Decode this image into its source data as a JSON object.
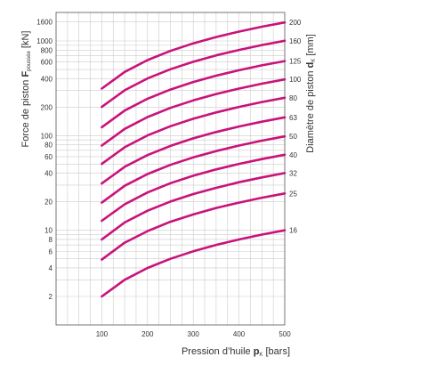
{
  "chart_data": {
    "type": "line",
    "xlabel": {
      "prefix": "Pression d’huile ",
      "symbol": "p",
      "sub": "K",
      "unit": " [bars]"
    },
    "ylabel": {
      "prefix": "Force de piston ",
      "symbol": "F",
      "sub": "poussée",
      "unit": " [kN]"
    },
    "y2label": {
      "prefix": "Diamètre de piston ",
      "symbol": "d",
      "sub": "K",
      "unit": " [mm]"
    },
    "x_scale": "linear",
    "y_scale": "log",
    "xlim": [
      0,
      500
    ],
    "ylim": [
      1,
      2000
    ],
    "x_ticks": [
      100,
      200,
      300,
      400,
      500
    ],
    "y_ticks": [
      2,
      4,
      6,
      8,
      10,
      20,
      40,
      60,
      80,
      100,
      200,
      400,
      600,
      800,
      1000,
      1600
    ],
    "grid": true,
    "line_color": "#c8137a",
    "x": [
      100,
      150,
      200,
      250,
      300,
      350,
      400,
      450,
      500
    ],
    "series": [
      {
        "name": "16",
        "values": [
          2.0,
          3.0,
          4.0,
          5.0,
          6.0,
          7.0,
          8.0,
          9.0,
          10.0
        ]
      },
      {
        "name": "25",
        "values": [
          4.9,
          7.4,
          9.8,
          12.3,
          14.7,
          17.2,
          19.6,
          22.1,
          24.5
        ]
      },
      {
        "name": "32",
        "values": [
          8.0,
          12.1,
          16.1,
          20.1,
          24.1,
          28.1,
          32.2,
          36.2,
          40.2
        ]
      },
      {
        "name": "40",
        "values": [
          12.6,
          18.8,
          25.1,
          31.4,
          37.7,
          44.0,
          50.3,
          56.5,
          62.8
        ]
      },
      {
        "name": "50",
        "values": [
          19.6,
          29.5,
          39.3,
          49.1,
          58.9,
          68.7,
          78.5,
          88.4,
          98.2
        ]
      },
      {
        "name": "63",
        "values": [
          31.2,
          46.8,
          62.3,
          77.9,
          93.5,
          109.1,
          124.7,
          140.3,
          155.9
        ]
      },
      {
        "name": "80",
        "values": [
          50.3,
          75.4,
          100.5,
          125.7,
          150.8,
          175.9,
          201.1,
          226.2,
          251.3
        ]
      },
      {
        "name": "100",
        "values": [
          78.5,
          117.8,
          157.1,
          196.3,
          235.6,
          274.9,
          314.2,
          353.4,
          392.7
        ]
      },
      {
        "name": "125",
        "values": [
          122.7,
          184.1,
          245.4,
          306.8,
          368.2,
          429.5,
          490.9,
          552.2,
          613.6
        ]
      },
      {
        "name": "160",
        "values": [
          201.1,
          301.6,
          402.1,
          502.7,
          603.2,
          703.7,
          804.2,
          904.8,
          1005.3
        ]
      },
      {
        "name": "200",
        "values": [
          314.2,
          471.2,
          628.3,
          785.4,
          942.5,
          1099.6,
          1256.6,
          1413.7,
          1570.8
        ]
      }
    ]
  }
}
